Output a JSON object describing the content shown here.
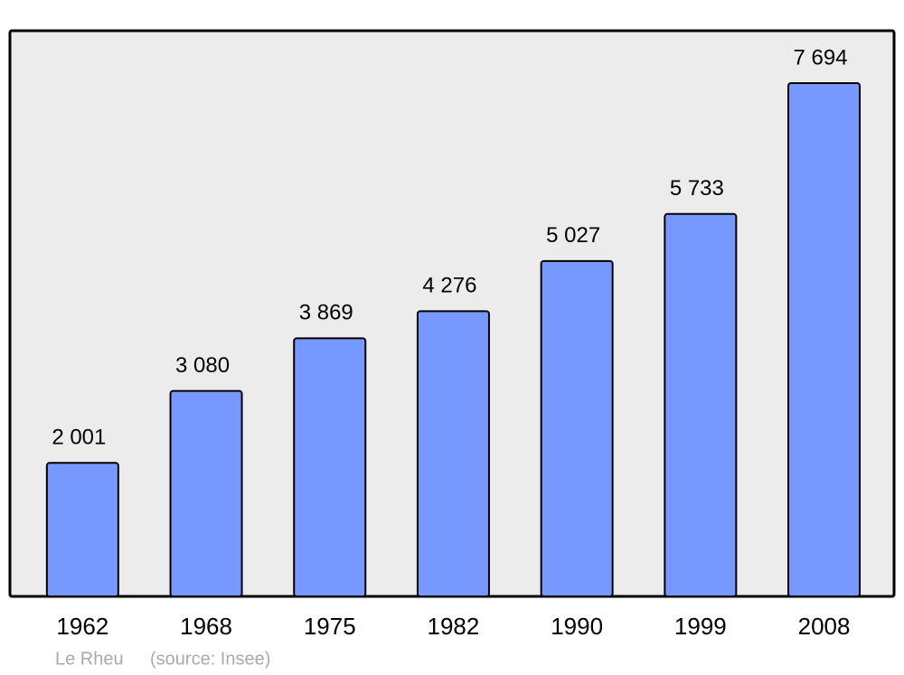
{
  "chart_data": {
    "type": "bar",
    "categories": [
      "1962",
      "1968",
      "1975",
      "1982",
      "1990",
      "1999",
      "2008"
    ],
    "values": [
      2001,
      3080,
      3869,
      4276,
      5027,
      5733,
      7694
    ],
    "value_labels": [
      "2 001",
      "3 080",
      "3 869",
      "4 276",
      "5 027",
      "5 733",
      "7 694"
    ],
    "color": "#7799ff",
    "background": "#ececec",
    "place": "Le Rheu",
    "source": "(source: Insee)"
  }
}
